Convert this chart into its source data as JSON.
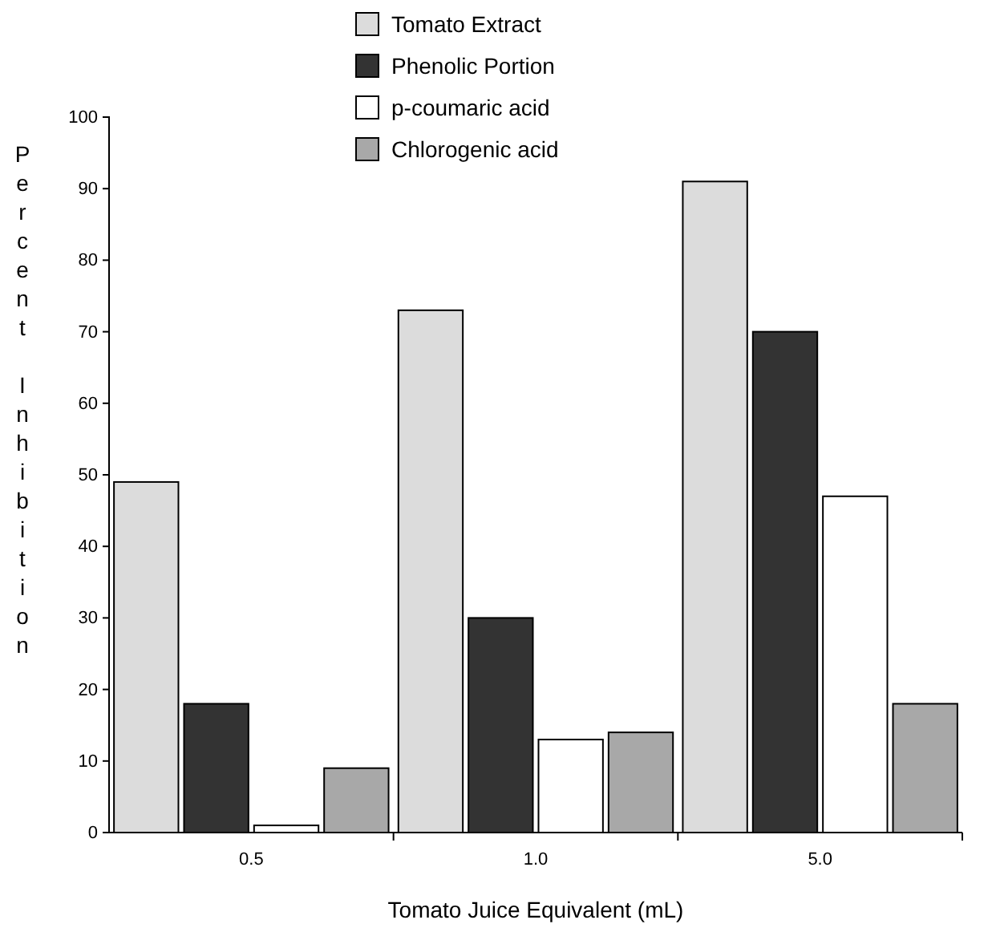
{
  "chart_data": {
    "type": "bar",
    "xlabel": "Tomato Juice Equivalent (mL)",
    "ylabel": "Percent Inhibition",
    "categories": [
      "0.5",
      "1.0",
      "5.0"
    ],
    "series": [
      {
        "name": "Tomato Extract",
        "color": "#dcdcdc",
        "values": [
          49,
          73,
          91
        ]
      },
      {
        "name": "Phenolic Portion",
        "color": "#333333",
        "values": [
          18,
          30,
          70
        ]
      },
      {
        "name": "p-coumaric acid",
        "color": "#ffffff",
        "values": [
          1,
          13,
          47
        ]
      },
      {
        "name": "Chlorogenic acid",
        "color": "#a8a8a8",
        "values": [
          9,
          14,
          18
        ]
      }
    ],
    "ylim": [
      0,
      100
    ],
    "yticks": [
      0,
      10,
      20,
      30,
      40,
      50,
      60,
      70,
      80,
      90,
      100
    ],
    "grid": false,
    "legend": "top"
  }
}
